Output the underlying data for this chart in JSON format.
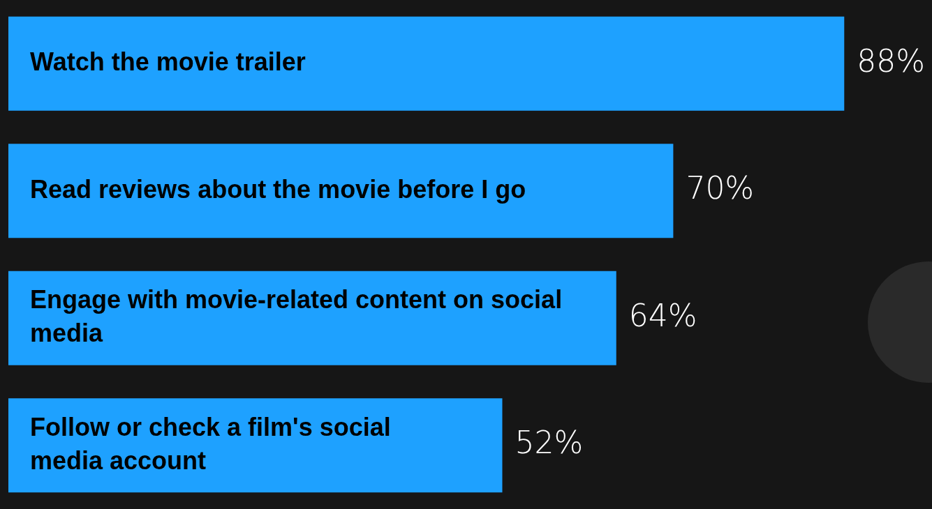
{
  "chart_data": {
    "type": "bar",
    "orientation": "horizontal",
    "categories": [
      "Watch the movie trailer",
      "Read reviews about the movie before I go",
      "Engage with movie-related content on social media",
      "Follow or check a film's social media account"
    ],
    "values": [
      88,
      70,
      64,
      52
    ],
    "value_labels": [
      "88%",
      "70%",
      "64%",
      "52%"
    ],
    "color": "#1ea1ff",
    "legend": false
  }
}
